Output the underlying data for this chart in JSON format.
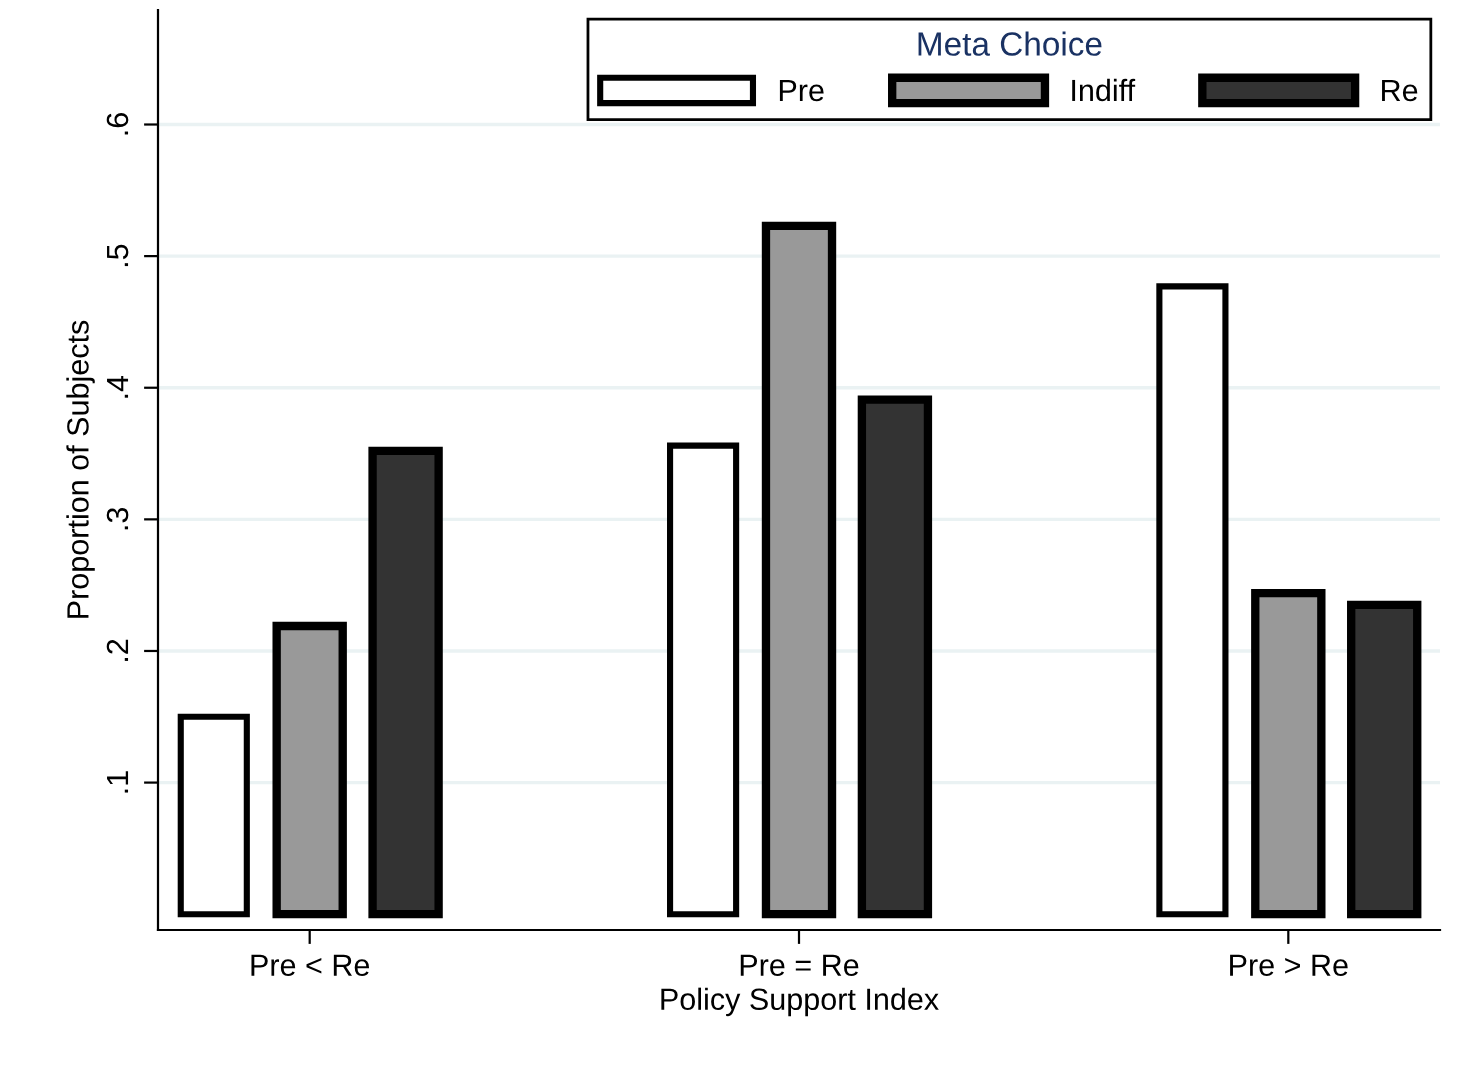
{
  "chart_data": {
    "type": "bar",
    "xlabel": "Policy Support Index",
    "ylabel": "Proportion of Subjects",
    "legend_title": "Meta Choice",
    "categories": [
      "Pre < Re",
      "Pre = Re",
      "Pre > Re"
    ],
    "series": [
      {
        "name": "Pre",
        "color": "#ffffff",
        "values": [
          0.15,
          0.356,
          0.477
        ]
      },
      {
        "name": "Indiff",
        "color": "#999999",
        "values": [
          0.219,
          0.523,
          0.244
        ]
      },
      {
        "name": "Re",
        "color": "#333333",
        "values": [
          0.352,
          0.391,
          0.235
        ]
      }
    ],
    "ylim": [
      -0.012,
      0.687
    ],
    "yticks": [
      {
        "value": 0.1,
        "label": ".1"
      },
      {
        "value": 0.2,
        "label": ".2"
      },
      {
        "value": 0.3,
        "label": ".3"
      },
      {
        "value": 0.4,
        "label": ".4"
      },
      {
        "value": 0.5,
        "label": ".5"
      },
      {
        "value": 0.6,
        "label": ".6"
      }
    ],
    "grid": "y",
    "legend": "top right"
  }
}
